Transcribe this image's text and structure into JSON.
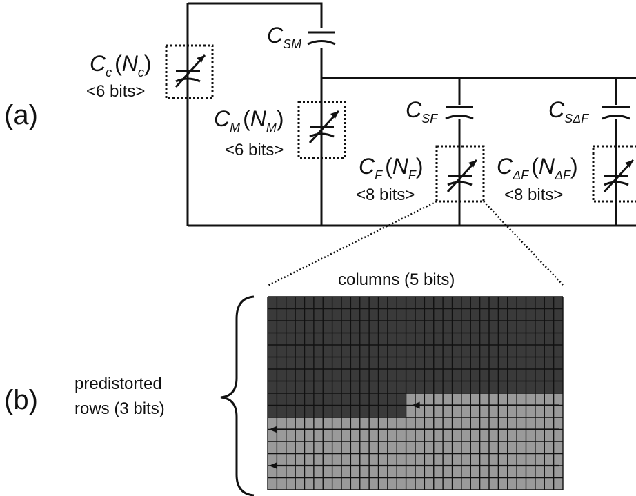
{
  "panel_a": {
    "tag": "(a)",
    "caps": [
      {
        "sym": "C",
        "sub": "c",
        "paren_open": "(",
        "ctrl": "N",
        "ctrl_sub": "c",
        "paren_close": ")",
        "bits": "<6 bits>"
      },
      {
        "sym": "C",
        "sub": "M",
        "paren_open": "(",
        "ctrl": "N",
        "ctrl_sub": "M",
        "paren_close": ")",
        "bits": "<6 bits>"
      },
      {
        "sym": "C",
        "sub": "F",
        "paren_open": "(",
        "ctrl": "N",
        "ctrl_sub": "F",
        "paren_close": ")",
        "bits": "<8 bits>"
      },
      {
        "sym": "C",
        "sub": "ΔF",
        "paren_open": "(",
        "ctrl": "N",
        "ctrl_sub": "ΔF",
        "paren_close": ")",
        "bits": "<8 bits>"
      }
    ],
    "series_caps": [
      {
        "sym": "C",
        "sub": "SM"
      },
      {
        "sym": "C",
        "sub": "SF"
      },
      {
        "sym": "C",
        "sub": "SΔF"
      }
    ]
  },
  "panel_b": {
    "tag": "(b)",
    "columns_label": "columns (5 bits)",
    "rows_label_line1": "predistorted",
    "rows_label_line2": "rows (3 bits)",
    "colors": {
      "on": "#3a3a3a",
      "off": "#9a9a9a",
      "grid": "#111111"
    }
  }
}
